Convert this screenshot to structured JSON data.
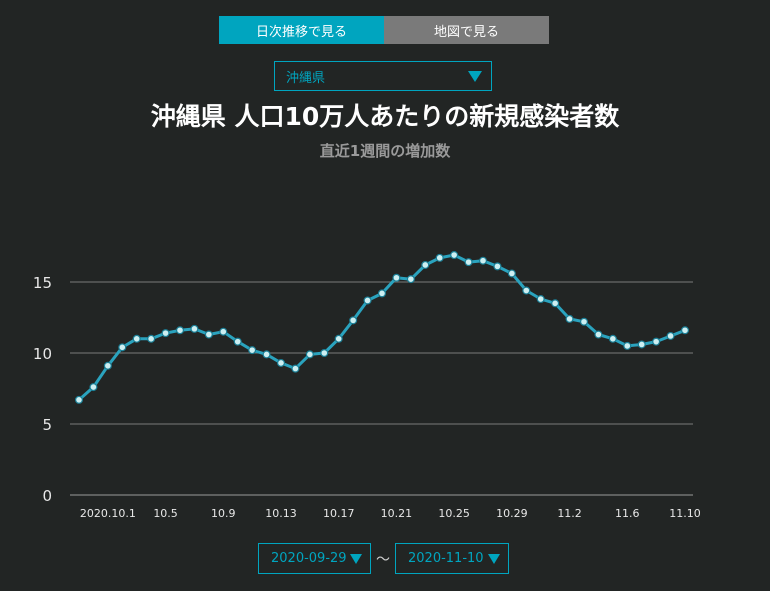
{
  "tabs": [
    {
      "label": "日次推移で見る",
      "active": true
    },
    {
      "label": "地図で見る",
      "active": false
    }
  ],
  "prefecture_select": {
    "value": "沖縄県"
  },
  "colors": {
    "accent": "#00a5bf",
    "background": "#222524",
    "grid": "#7a7a7a",
    "line": "#2aa3be",
    "marker_fill": "#cdeff2"
  },
  "date_range": {
    "start": "2020-09-29",
    "end": "2020-11-10",
    "separator": "〜"
  },
  "chart_data": {
    "type": "line",
    "title": "沖縄県 人口10万人あたりの新規感染者数",
    "subtitle": "直近1週間の増加数",
    "xlabel": "",
    "ylabel": "",
    "ylim": [
      0,
      18
    ],
    "y_ticks": [
      0,
      5,
      10,
      15
    ],
    "grid": true,
    "x_tick_labels": [
      "2020.10.1",
      "10.5",
      "10.9",
      "10.13",
      "10.17",
      "10.21",
      "10.25",
      "10.29",
      "11.2",
      "11.6",
      "11.10"
    ],
    "x": [
      "9/29",
      "9/30",
      "10/1",
      "10/2",
      "10/3",
      "10/4",
      "10/5",
      "10/6",
      "10/7",
      "10/8",
      "10/9",
      "10/10",
      "10/11",
      "10/12",
      "10/13",
      "10/14",
      "10/15",
      "10/16",
      "10/17",
      "10/18",
      "10/19",
      "10/20",
      "10/21",
      "10/22",
      "10/23",
      "10/24",
      "10/25",
      "10/26",
      "10/27",
      "10/28",
      "10/29",
      "10/30",
      "10/31",
      "11/1",
      "11/2",
      "11/3",
      "11/4",
      "11/5",
      "11/6",
      "11/7",
      "11/8",
      "11/9",
      "11/10"
    ],
    "values": [
      6.7,
      7.6,
      9.1,
      10.4,
      11.0,
      11.0,
      11.4,
      11.6,
      11.7,
      11.3,
      11.5,
      10.8,
      10.2,
      9.9,
      9.3,
      8.9,
      9.9,
      10.0,
      11.0,
      12.3,
      13.7,
      14.2,
      15.3,
      15.2,
      16.2,
      16.7,
      16.9,
      16.4,
      16.5,
      16.1,
      15.6,
      14.4,
      13.8,
      13.5,
      12.4,
      12.2,
      11.3,
      11.0,
      10.5,
      10.6,
      10.8,
      11.2,
      11.6
    ]
  }
}
